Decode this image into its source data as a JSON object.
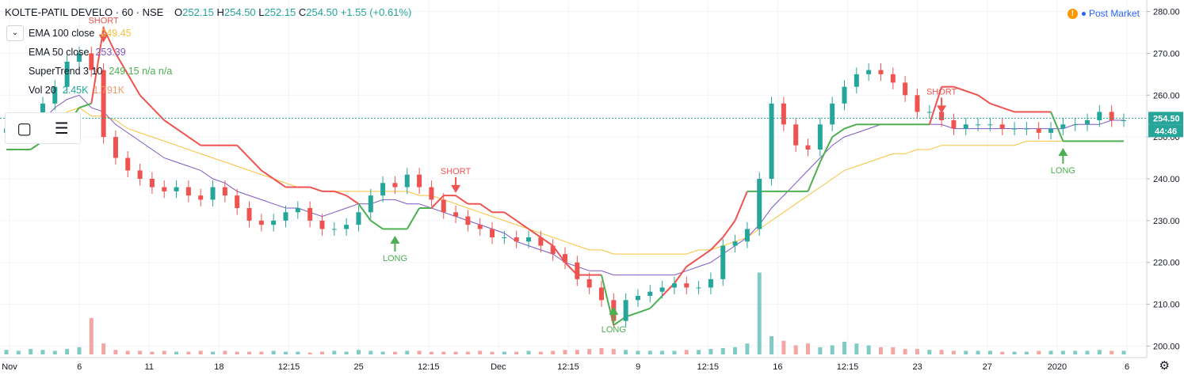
{
  "header": {
    "symbol": "KOLTE-PATIL DEVELO · 60 · NSE",
    "o_label": "O",
    "o": "252.15",
    "h_label": "H",
    "h": "254.50",
    "l_label": "L",
    "l": "252.15",
    "c_label": "C",
    "c": "254.50",
    "change": "+1.55 (+0.61%)"
  },
  "legend": [
    {
      "label": "EMA 100 close",
      "value": "249.45",
      "color": "#f9c23c"
    },
    {
      "label": "EMA 50 close",
      "value": "253.39",
      "color": "#7e57c2"
    },
    {
      "label": "SuperTrend 3 10",
      "value": "249.15  n/a  n/a",
      "color": "#4caf50"
    },
    {
      "label": "Vol 20",
      "value": "2.45K",
      "value2": "1.791K",
      "color": "#26a69a",
      "color2": "#ef9a6a"
    }
  ],
  "post_market": "Post Market",
  "colors": {
    "up": "#26a69a",
    "down": "#ef5350",
    "ema100": "#f9c23c",
    "ema50": "#7e57c2",
    "st_up": "#4caf50",
    "st_down": "#ef5350"
  },
  "chart_data": {
    "type": "candlestick",
    "x_ticks": [
      "Nov",
      "6",
      "11",
      "18",
      "12:15",
      "25",
      "12:15",
      "Dec",
      "12:15",
      "9",
      "12:15",
      "16",
      "12:15",
      "23",
      "27",
      "2020",
      "6"
    ],
    "y_ticks": [
      "200.00",
      "210.00",
      "220.00",
      "230.00",
      "240.00",
      "250.00",
      "260.00",
      "270.00",
      "280.00"
    ],
    "ylim": [
      198,
      282
    ],
    "last_price": "254.50",
    "countdown": "44:46",
    "close": [
      252,
      253,
      254,
      258,
      262,
      268,
      270,
      266,
      250,
      245,
      242,
      240,
      238,
      237,
      238,
      236,
      235,
      238,
      236,
      233,
      230,
      229,
      230,
      232,
      233,
      230,
      228,
      228,
      229,
      232,
      236,
      239,
      238,
      241,
      238,
      235,
      232,
      231,
      229,
      228,
      226,
      226,
      225,
      226,
      224,
      222,
      220,
      216,
      214,
      211,
      206,
      211,
      212,
      213,
      214,
      215,
      214,
      214,
      216,
      224,
      225,
      228,
      240,
      258,
      253,
      248,
      247,
      253,
      258,
      262,
      265,
      266,
      265,
      263,
      260,
      256,
      256,
      254,
      252,
      253,
      253,
      253,
      252,
      252,
      252,
      251,
      252,
      253,
      253,
      254,
      256,
      254,
      254
    ],
    "supertrend": [
      247,
      247,
      247,
      249,
      250,
      253,
      257,
      258,
      276,
      270,
      265,
      260,
      257,
      254,
      252,
      250,
      248,
      248,
      248,
      248,
      245,
      242,
      240,
      238,
      238,
      238,
      237,
      237,
      236,
      234,
      230,
      228,
      228,
      228,
      233,
      233,
      236,
      236,
      234,
      234,
      232,
      232,
      230,
      228,
      226,
      224,
      220,
      217,
      217,
      217,
      205,
      207,
      208,
      209,
      212,
      215,
      219,
      221,
      223,
      226,
      230,
      237,
      237,
      237,
      237,
      237,
      237,
      244,
      250,
      252,
      253,
      253,
      253,
      253,
      253,
      253,
      253,
      262,
      262,
      261,
      260,
      258,
      257,
      256,
      256,
      256,
      256,
      249,
      249,
      249,
      249,
      249,
      249
    ],
    "ema50": [
      250,
      251,
      252,
      254,
      257,
      259,
      260,
      257,
      256,
      253,
      251,
      249,
      247,
      245,
      244,
      243,
      242,
      240,
      239,
      237,
      236,
      235,
      234,
      233,
      233,
      232,
      231,
      232,
      233,
      234,
      234,
      235,
      235,
      234,
      234,
      233,
      232,
      231,
      230,
      229,
      228,
      227,
      225,
      224,
      223,
      222,
      220,
      219,
      218,
      218,
      217,
      217,
      217,
      217,
      217,
      217,
      218,
      219,
      220,
      222,
      224,
      226,
      229,
      233,
      236,
      239,
      242,
      245,
      248,
      250,
      251,
      252,
      253,
      253,
      253,
      253,
      253,
      253,
      252,
      252,
      252,
      252,
      252,
      252,
      252,
      252,
      252,
      252,
      253,
      253,
      253,
      254,
      254
    ],
    "ema100": [
      249,
      250,
      251,
      252,
      254,
      256,
      257,
      255,
      255,
      254,
      252,
      251,
      250,
      249,
      248,
      247,
      246,
      245,
      244,
      243,
      242,
      241,
      240,
      239,
      238,
      238,
      237,
      237,
      237,
      237,
      237,
      237,
      237,
      237,
      236,
      236,
      235,
      234,
      233,
      232,
      231,
      230,
      229,
      228,
      227,
      226,
      225,
      224,
      223,
      223,
      222,
      222,
      222,
      222,
      222,
      222,
      222,
      223,
      223,
      224,
      225,
      226,
      228,
      230,
      232,
      234,
      236,
      238,
      240,
      242,
      243,
      244,
      245,
      246,
      246,
      247,
      247,
      248,
      248,
      248,
      248,
      248,
      248,
      248,
      249,
      249,
      249,
      249,
      249,
      249,
      249,
      249,
      249
    ],
    "volume": [
      0.05,
      0.04,
      0.06,
      0.05,
      0.04,
      0.06,
      0.08,
      0.4,
      0.12,
      0.05,
      0.04,
      0.04,
      0.03,
      0.04,
      0.03,
      0.03,
      0.04,
      0.03,
      0.04,
      0.03,
      0.03,
      0.03,
      0.04,
      0.03,
      0.03,
      0.02,
      0.03,
      0.04,
      0.03,
      0.05,
      0.04,
      0.03,
      0.03,
      0.04,
      0.04,
      0.03,
      0.03,
      0.03,
      0.03,
      0.04,
      0.03,
      0.03,
      0.03,
      0.04,
      0.03,
      0.04,
      0.05,
      0.05,
      0.06,
      0.07,
      0.06,
      0.05,
      0.04,
      0.04,
      0.04,
      0.04,
      0.05,
      0.05,
      0.06,
      0.07,
      0.08,
      0.12,
      0.9,
      0.2,
      0.15,
      0.1,
      0.12,
      0.08,
      0.1,
      0.14,
      0.12,
      0.1,
      0.08,
      0.08,
      0.06,
      0.06,
      0.05,
      0.05,
      0.04,
      0.04,
      0.04,
      0.04,
      0.03,
      0.03,
      0.03,
      0.04,
      0.04,
      0.04,
      0.04,
      0.04,
      0.05,
      0.04,
      0.04
    ],
    "signals": [
      {
        "type": "SHORT",
        "index": 8,
        "price": 273
      },
      {
        "type": "LONG",
        "index": 32,
        "price": 226
      },
      {
        "type": "SHORT",
        "index": 37,
        "price": 237
      },
      {
        "type": "LONG",
        "index": 50,
        "price": 209
      },
      {
        "type": "SHORT",
        "index": 77,
        "price": 256
      },
      {
        "type": "LONG",
        "index": 87,
        "price": 247
      }
    ]
  }
}
